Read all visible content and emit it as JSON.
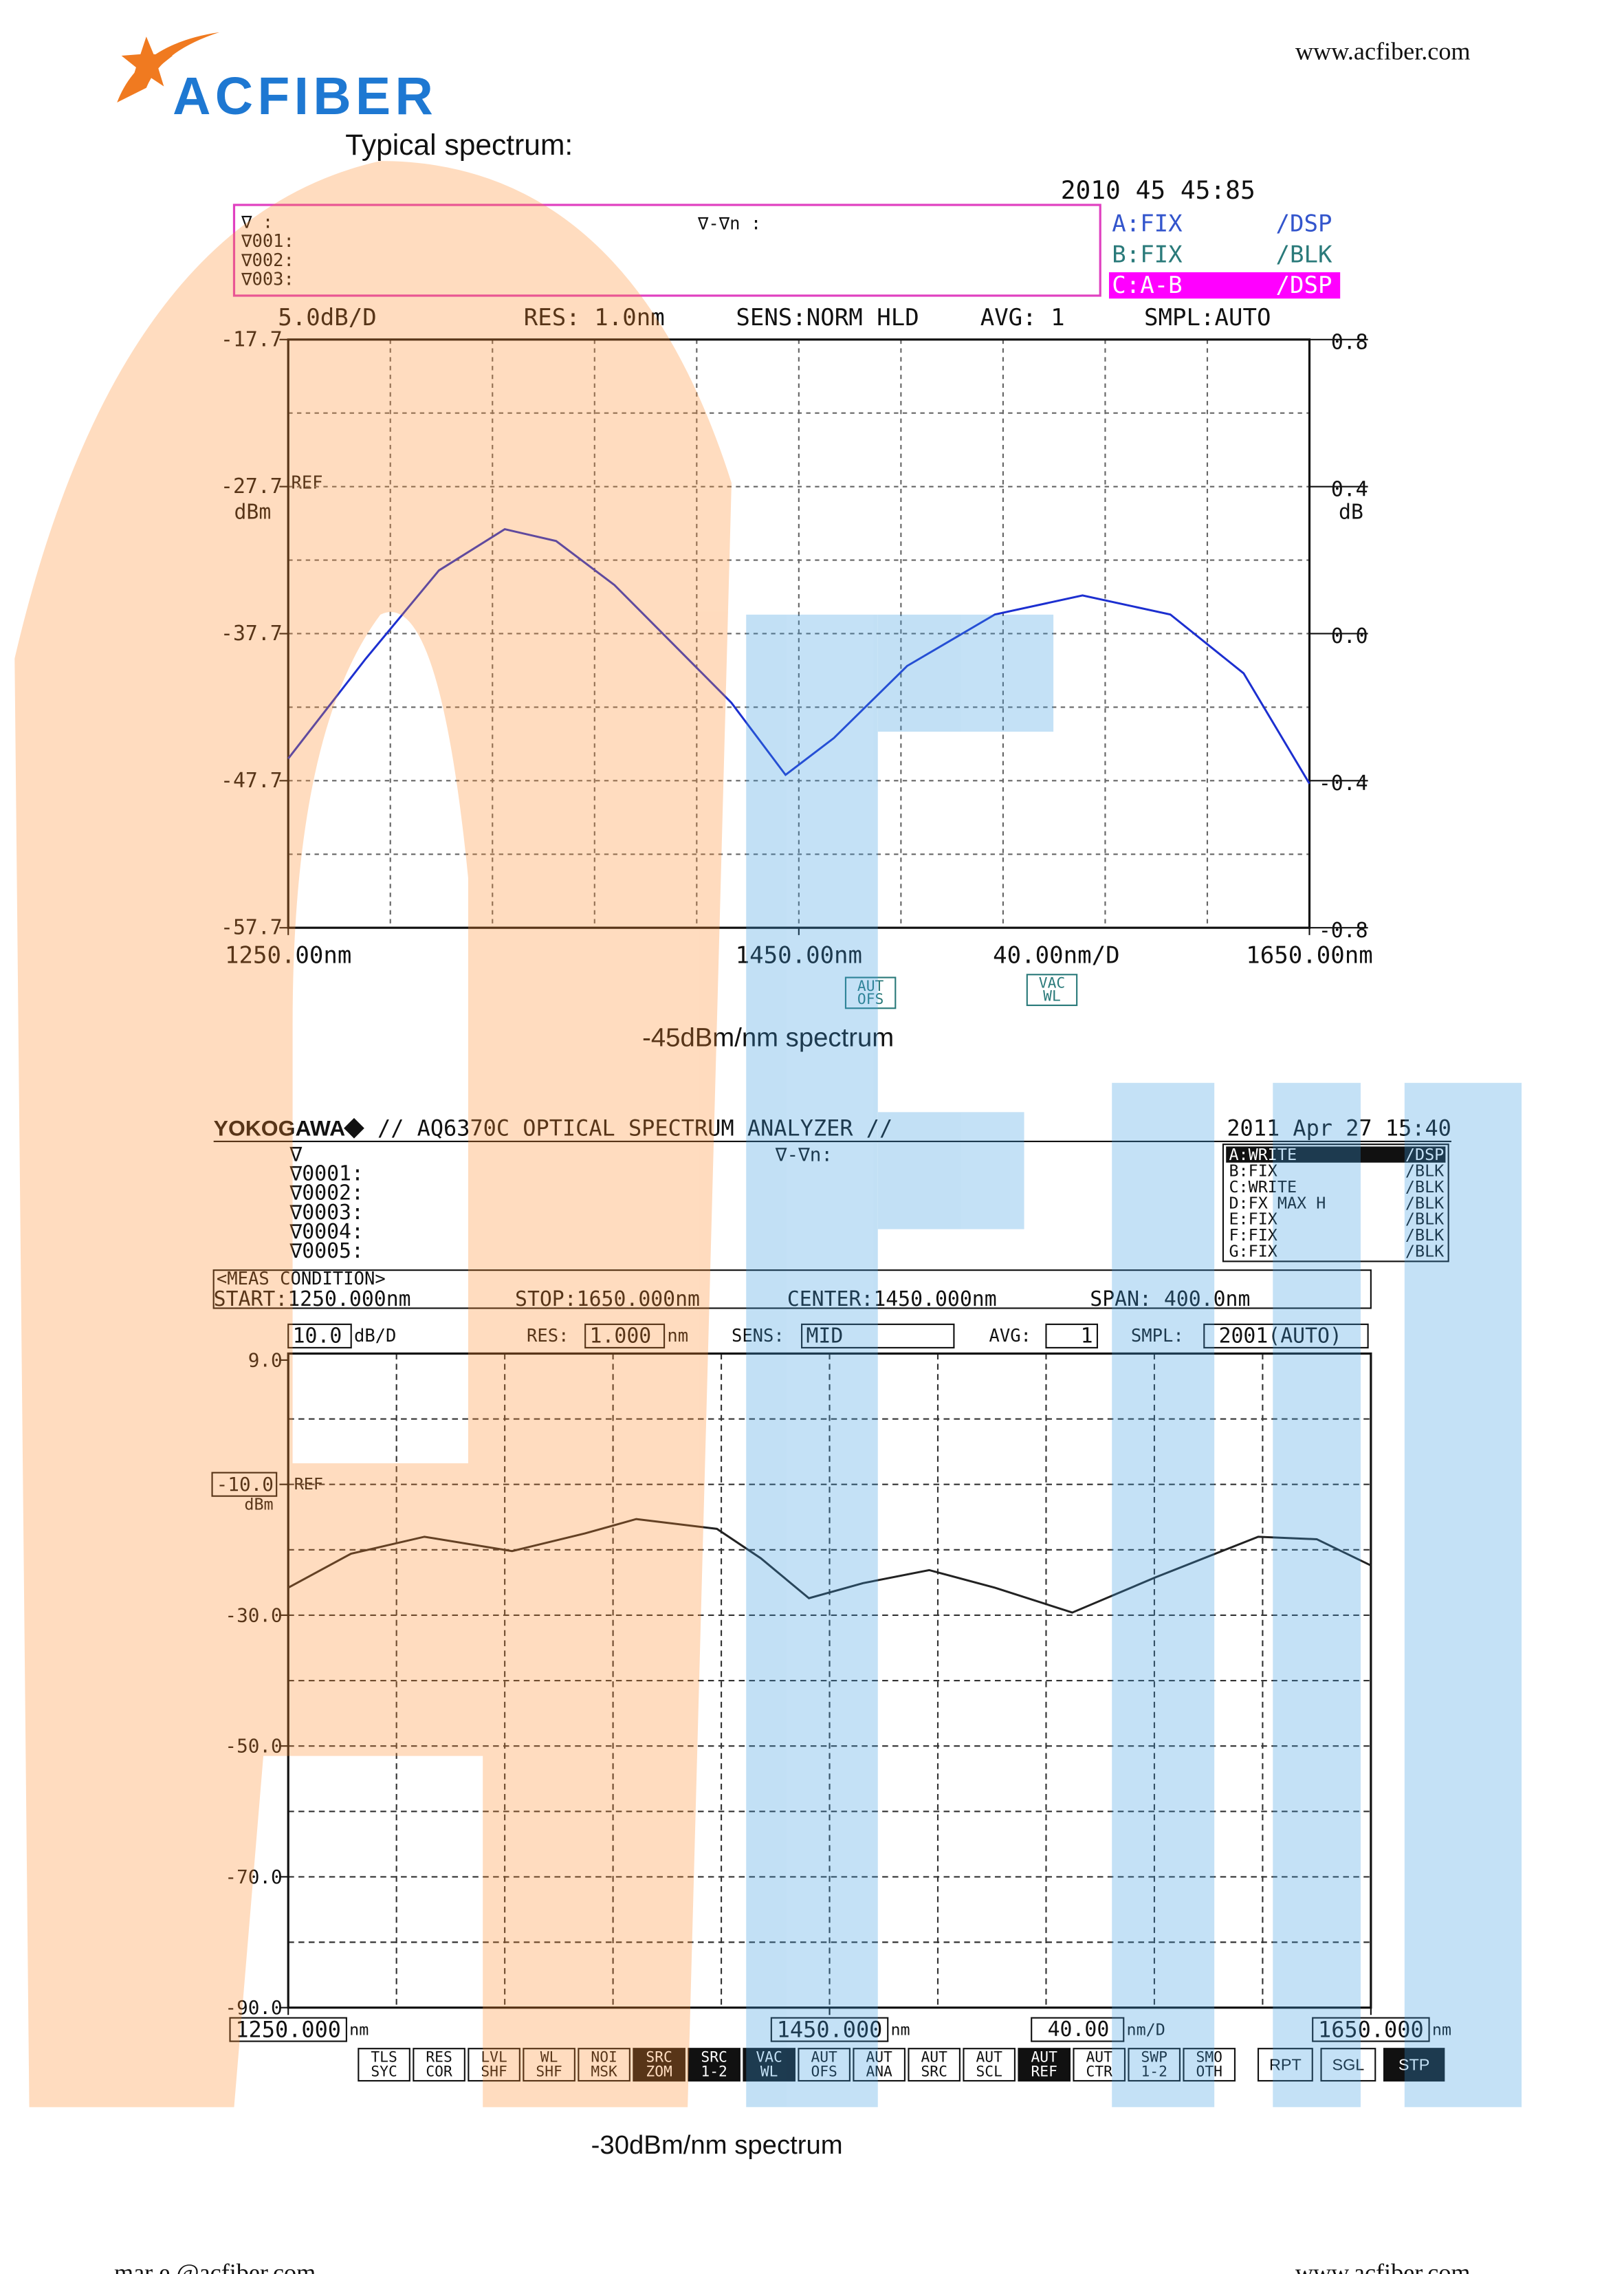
{
  "header": {
    "website": "www.acfiber.com",
    "logo": "ACFIBER",
    "heading": "Typical spectrum:"
  },
  "chart_data": [
    {
      "type": "line",
      "date": "2010  45 45:85",
      "markers": [
        "∇      :",
        "∇001:",
        "∇002:",
        "∇003:"
      ],
      "delta": "∇-∇n :",
      "traces": [
        [
          "A:FIX",
          "/DSP"
        ],
        [
          "B:FIX",
          "/BLK"
        ],
        [
          "C:A-B",
          "/DSP"
        ]
      ],
      "scale": "5.0dB/D",
      "res": "RES: 1.0nm",
      "sens": "SENS:NORM HLD",
      "avg": "AVG:   1",
      "smpl": "SMPL:AUTO",
      "ref": "REF",
      "y_label": "dBm",
      "y2_label": "dB",
      "x_scale": "40.00nm/D",
      "keys": [
        [
          "AUT",
          "OFS"
        ],
        [
          "VAC",
          "WL"
        ]
      ],
      "caption": "-45dBm/nm spectrum",
      "x": [
        1250,
        1280.4,
        1309,
        1334.8,
        1354.9,
        1377.8,
        1400.7,
        1423.6,
        1444.8,
        1463.7,
        1492.4,
        1526.8,
        1561.1,
        1595.5,
        1624.2,
        1650
      ],
      "values": [
        -46.2,
        -39.4,
        -33.4,
        -30.6,
        -31.4,
        -34.4,
        -38.4,
        -42.4,
        -47.3,
        -44.8,
        -39.9,
        -36.4,
        -35.1,
        -36.4,
        -40.4,
        -47.9
      ],
      "color": "#1c2fd0",
      "xlim": [
        1250,
        1650
      ],
      "xticks": [
        {
          "value": 1250,
          "label": "1250.00nm"
        },
        {
          "value": 1450,
          "label": "1450.00nm"
        },
        {
          "value": 1650,
          "label": "1650.00nm"
        }
      ],
      "ylim": [
        -57.7,
        -17.7
      ],
      "yticks": [
        -17.7,
        -27.7,
        -37.7,
        -47.7,
        -57.7
      ],
      "y2lim": [
        -0.8,
        0.8
      ],
      "y2ticks": [
        0.8,
        0.4,
        {
          "value": 0,
          "label": "0.0"
        },
        -0.4,
        -0.8
      ],
      "grid": true
    },
    {
      "type": "line",
      "brand": "YOKOGAWA",
      "title": "// AQ6370C OPTICAL SPECTRUM ANALYZER //",
      "date": "2011 Apr 27 15:40",
      "markers": [
        "∇",
        "∇0001:",
        "∇0002:",
        "∇0003:",
        "∇0004:",
        "∇0005:"
      ],
      "delta": "∇-∇n:",
      "traces": [
        [
          "A:WRITE",
          "/DSP"
        ],
        [
          "B:FIX",
          "/BLK"
        ],
        [
          "C:WRITE",
          "/BLK"
        ],
        [
          "D:FX MAX H",
          "/BLK"
        ],
        [
          "E:FIX",
          "/BLK"
        ],
        [
          "F:FIX",
          "/BLK"
        ],
        [
          "G:FIX",
          "/BLK"
        ]
      ],
      "meas_title": "<MEAS CONDITION>",
      "meas": [
        "START:1250.000nm",
        "STOP:1650.000nm",
        "CENTER:1450.000nm",
        "SPAN: 400.0nm"
      ],
      "scale": "10.0",
      "scale_unit": "dB/D",
      "res_label": "RES:",
      "res": "1.000",
      "res_unit": "nm",
      "sens_label": "SENS:",
      "sens": "MID",
      "avg_label": "AVG:",
      "avg": "1",
      "smpl_label": "SMPL:",
      "smpl": "2001(AUTO)",
      "ref": "REF",
      "y_label": "dBm",
      "x_unit": "nm",
      "x_scale": "40.00",
      "x_scale_unit": "nm/D",
      "keys": [
        [
          "TLS",
          "SYC"
        ],
        [
          "RES",
          "COR"
        ],
        [
          "LVL",
          "SHF"
        ],
        [
          "WL",
          "SHF"
        ],
        [
          "NOI",
          "MSK"
        ],
        [
          "SRC",
          "ZOM"
        ],
        [
          "SRC",
          "1-2"
        ],
        [
          "VAC",
          "WL"
        ],
        [
          "AUT",
          "OFS"
        ],
        [
          "AUT",
          "ANA"
        ],
        [
          "AUT",
          "SRC"
        ],
        [
          "AUT",
          "SCL"
        ],
        [
          "AUT",
          "REF"
        ],
        [
          "AUT",
          "CTR"
        ],
        [
          "SWP",
          "1-2"
        ],
        [
          "SMO",
          "OTH"
        ]
      ],
      "side_keys": [
        "RPT",
        "SGL",
        "STP"
      ],
      "caption": "-30dBm/nm spectrum",
      "x": [
        1250,
        1273.2,
        1300.3,
        1332.7,
        1359.7,
        1378.6,
        1408.4,
        1424.6,
        1442.4,
        1462.4,
        1486.8,
        1511.1,
        1539.7,
        1570.5,
        1608.4,
        1630,
        1650
      ],
      "values": [
        -25.8,
        -20.6,
        -18.0,
        -20.2,
        -17.5,
        -15.3,
        -16.8,
        -21.3,
        -27.4,
        -25.1,
        -23.1,
        -25.8,
        -29.6,
        -24.2,
        -18.0,
        -18.4,
        -22.4
      ],
      "color": "#222222",
      "xlim": [
        1250,
        1650
      ],
      "xticks": [
        {
          "value": 1250,
          "label": "1250.000"
        },
        {
          "value": 1450,
          "label": "1450.000"
        },
        {
          "value": 1650,
          "label": "1650.000"
        }
      ],
      "ylim": [
        -90,
        10
      ],
      "yticks": [
        {
          "value": 9,
          "label": "9.0"
        },
        {
          "value": -10,
          "label": "-10.0"
        },
        {
          "value": -30,
          "label": "-30.0"
        },
        {
          "value": -50,
          "label": "-50.0"
        },
        {
          "value": -70,
          "label": "-70.0"
        },
        {
          "value": -90,
          "label": "-90.0"
        }
      ],
      "grid": true
    }
  ],
  "footer": {
    "email": "mar  e @acfiber.com",
    "website": "www.acfiber.com"
  }
}
